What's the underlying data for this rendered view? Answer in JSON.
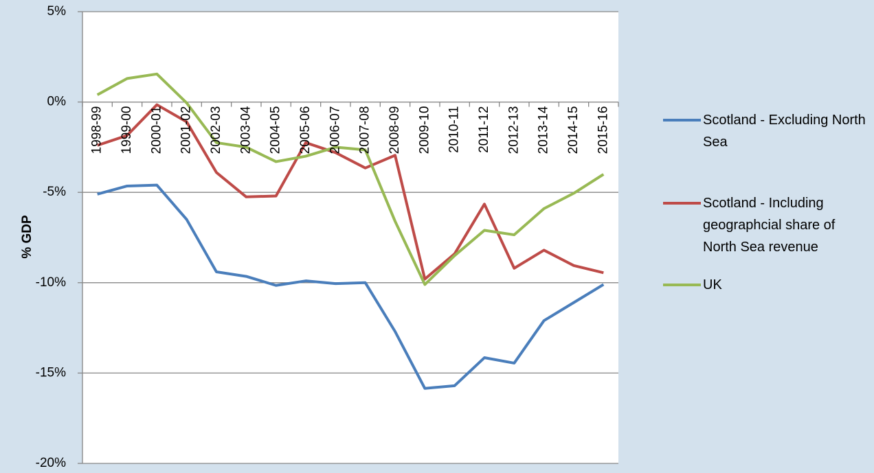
{
  "chart_data": {
    "type": "line",
    "y_label": "% GDP",
    "categories": [
      "1998-99",
      "1999-00",
      "2000-01",
      "2001-02",
      "2002-03",
      "2003-04",
      "2004-05",
      "2005-06",
      "2006-07",
      "2007-08",
      "2008-09",
      "2009-10",
      "2010-11",
      "2011-12",
      "2012-13",
      "2013-14",
      "2014-15",
      "2015-16"
    ],
    "series": [
      {
        "name": "Scotland - Excluding North Sea",
        "color": "#4a7ebb",
        "values": [
          -5.1,
          -4.65,
          -4.6,
          -6.5,
          -9.4,
          -9.65,
          -10.15,
          -9.9,
          -10.05,
          -10.0,
          -12.7,
          -15.85,
          -15.7,
          -14.15,
          -14.45,
          -12.1,
          -11.1,
          -10.1
        ]
      },
      {
        "name": "Scotland - Including geographcial share of North Sea revenue",
        "color": "#be4b48",
        "values": [
          -2.4,
          -1.85,
          -0.15,
          -1.1,
          -3.9,
          -5.25,
          -5.2,
          -2.25,
          -2.8,
          -3.65,
          -2.95,
          -9.8,
          -8.4,
          -5.65,
          -9.2,
          -8.2,
          -9.05,
          -9.45
        ]
      },
      {
        "name": "UK",
        "color": "#98b954",
        "values": [
          0.4,
          1.3,
          1.55,
          -0.05,
          -2.25,
          -2.5,
          -3.3,
          -3.0,
          -2.5,
          -2.65,
          -6.6,
          -10.1,
          -8.5,
          -7.1,
          -7.35,
          -5.9,
          -5.05,
          -4.0
        ]
      }
    ],
    "ylim": [
      -20,
      5
    ],
    "yticks": [
      {
        "value": -20,
        "label": "-20%"
      },
      {
        "value": -15,
        "label": "-15%"
      },
      {
        "value": -10,
        "label": "-10%"
      },
      {
        "value": -5,
        "label": "-5%"
      },
      {
        "value": 0,
        "label": "0%"
      },
      {
        "value": 5,
        "label": "5%"
      }
    ],
    "grid": true
  }
}
